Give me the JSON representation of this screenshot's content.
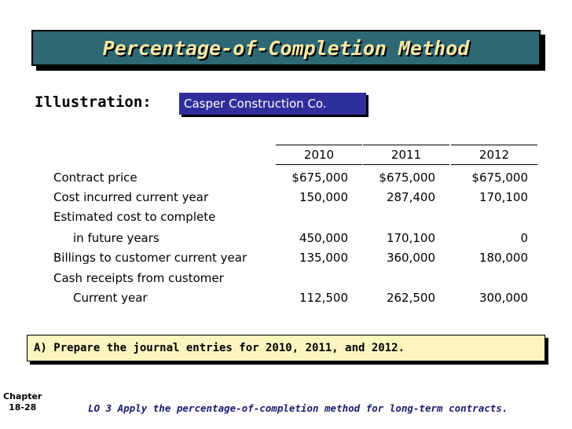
{
  "title": "Percentage-of-Completion Method",
  "illustration_label": "Illustration:",
  "company": "Casper Construction Co.",
  "table": {
    "years": [
      "2010",
      "2011",
      "2012"
    ],
    "rows": [
      {
        "label": "Contract price",
        "indent": false,
        "values": [
          "$675,000",
          "$675,000",
          "$675,000"
        ]
      },
      {
        "label": "Cost incurred current year",
        "indent": false,
        "values": [
          "150,000",
          "287,400",
          "170,100"
        ]
      },
      {
        "label": "Estimated cost to complete",
        "indent": false,
        "values": [
          "",
          "",
          ""
        ]
      },
      {
        "label": "in future years",
        "indent": true,
        "values": [
          "450,000",
          "170,100",
          "0"
        ]
      },
      {
        "label": "Billings to customer current year",
        "indent": false,
        "values": [
          "135,000",
          "360,000",
          "180,000"
        ]
      },
      {
        "label": "Cash receipts from customer",
        "indent": false,
        "values": [
          "",
          "",
          ""
        ]
      },
      {
        "label": "Current year",
        "indent": true,
        "values": [
          "112,500",
          "262,500",
          "300,000"
        ]
      }
    ]
  },
  "instruction": "A)  Prepare the journal entries for 2010, 2011, and 2012.",
  "footer": {
    "chapter_label": "Chapter",
    "chapter_number": "18-28",
    "lo_text": "LO 3 Apply the percentage-of-completion method for long-term contracts."
  }
}
